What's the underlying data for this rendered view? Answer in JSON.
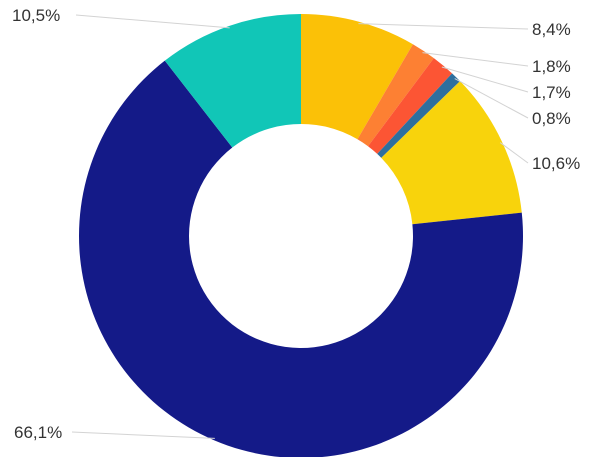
{
  "chart_data": {
    "type": "pie",
    "variant": "donut",
    "start": "12 o'clock",
    "direction": "clockwise",
    "legend": "none",
    "slices": [
      {
        "label": "8,4%",
        "value": 8.4,
        "color": "#fbc107"
      },
      {
        "label": "1,8%",
        "value": 1.8,
        "color": "#fd8033"
      },
      {
        "label": "1,7%",
        "value": 1.7,
        "color": "#fc5534"
      },
      {
        "label": "0,8%",
        "value": 0.8,
        "color": "#2e6f9e"
      },
      {
        "label": "10,6%",
        "value": 10.6,
        "color": "#f8d30c"
      },
      {
        "label": "66,1%",
        "value": 66.1,
        "color": "#141a88"
      },
      {
        "label": "10,5%",
        "value": 10.5,
        "color": "#11c6b7"
      }
    ]
  }
}
